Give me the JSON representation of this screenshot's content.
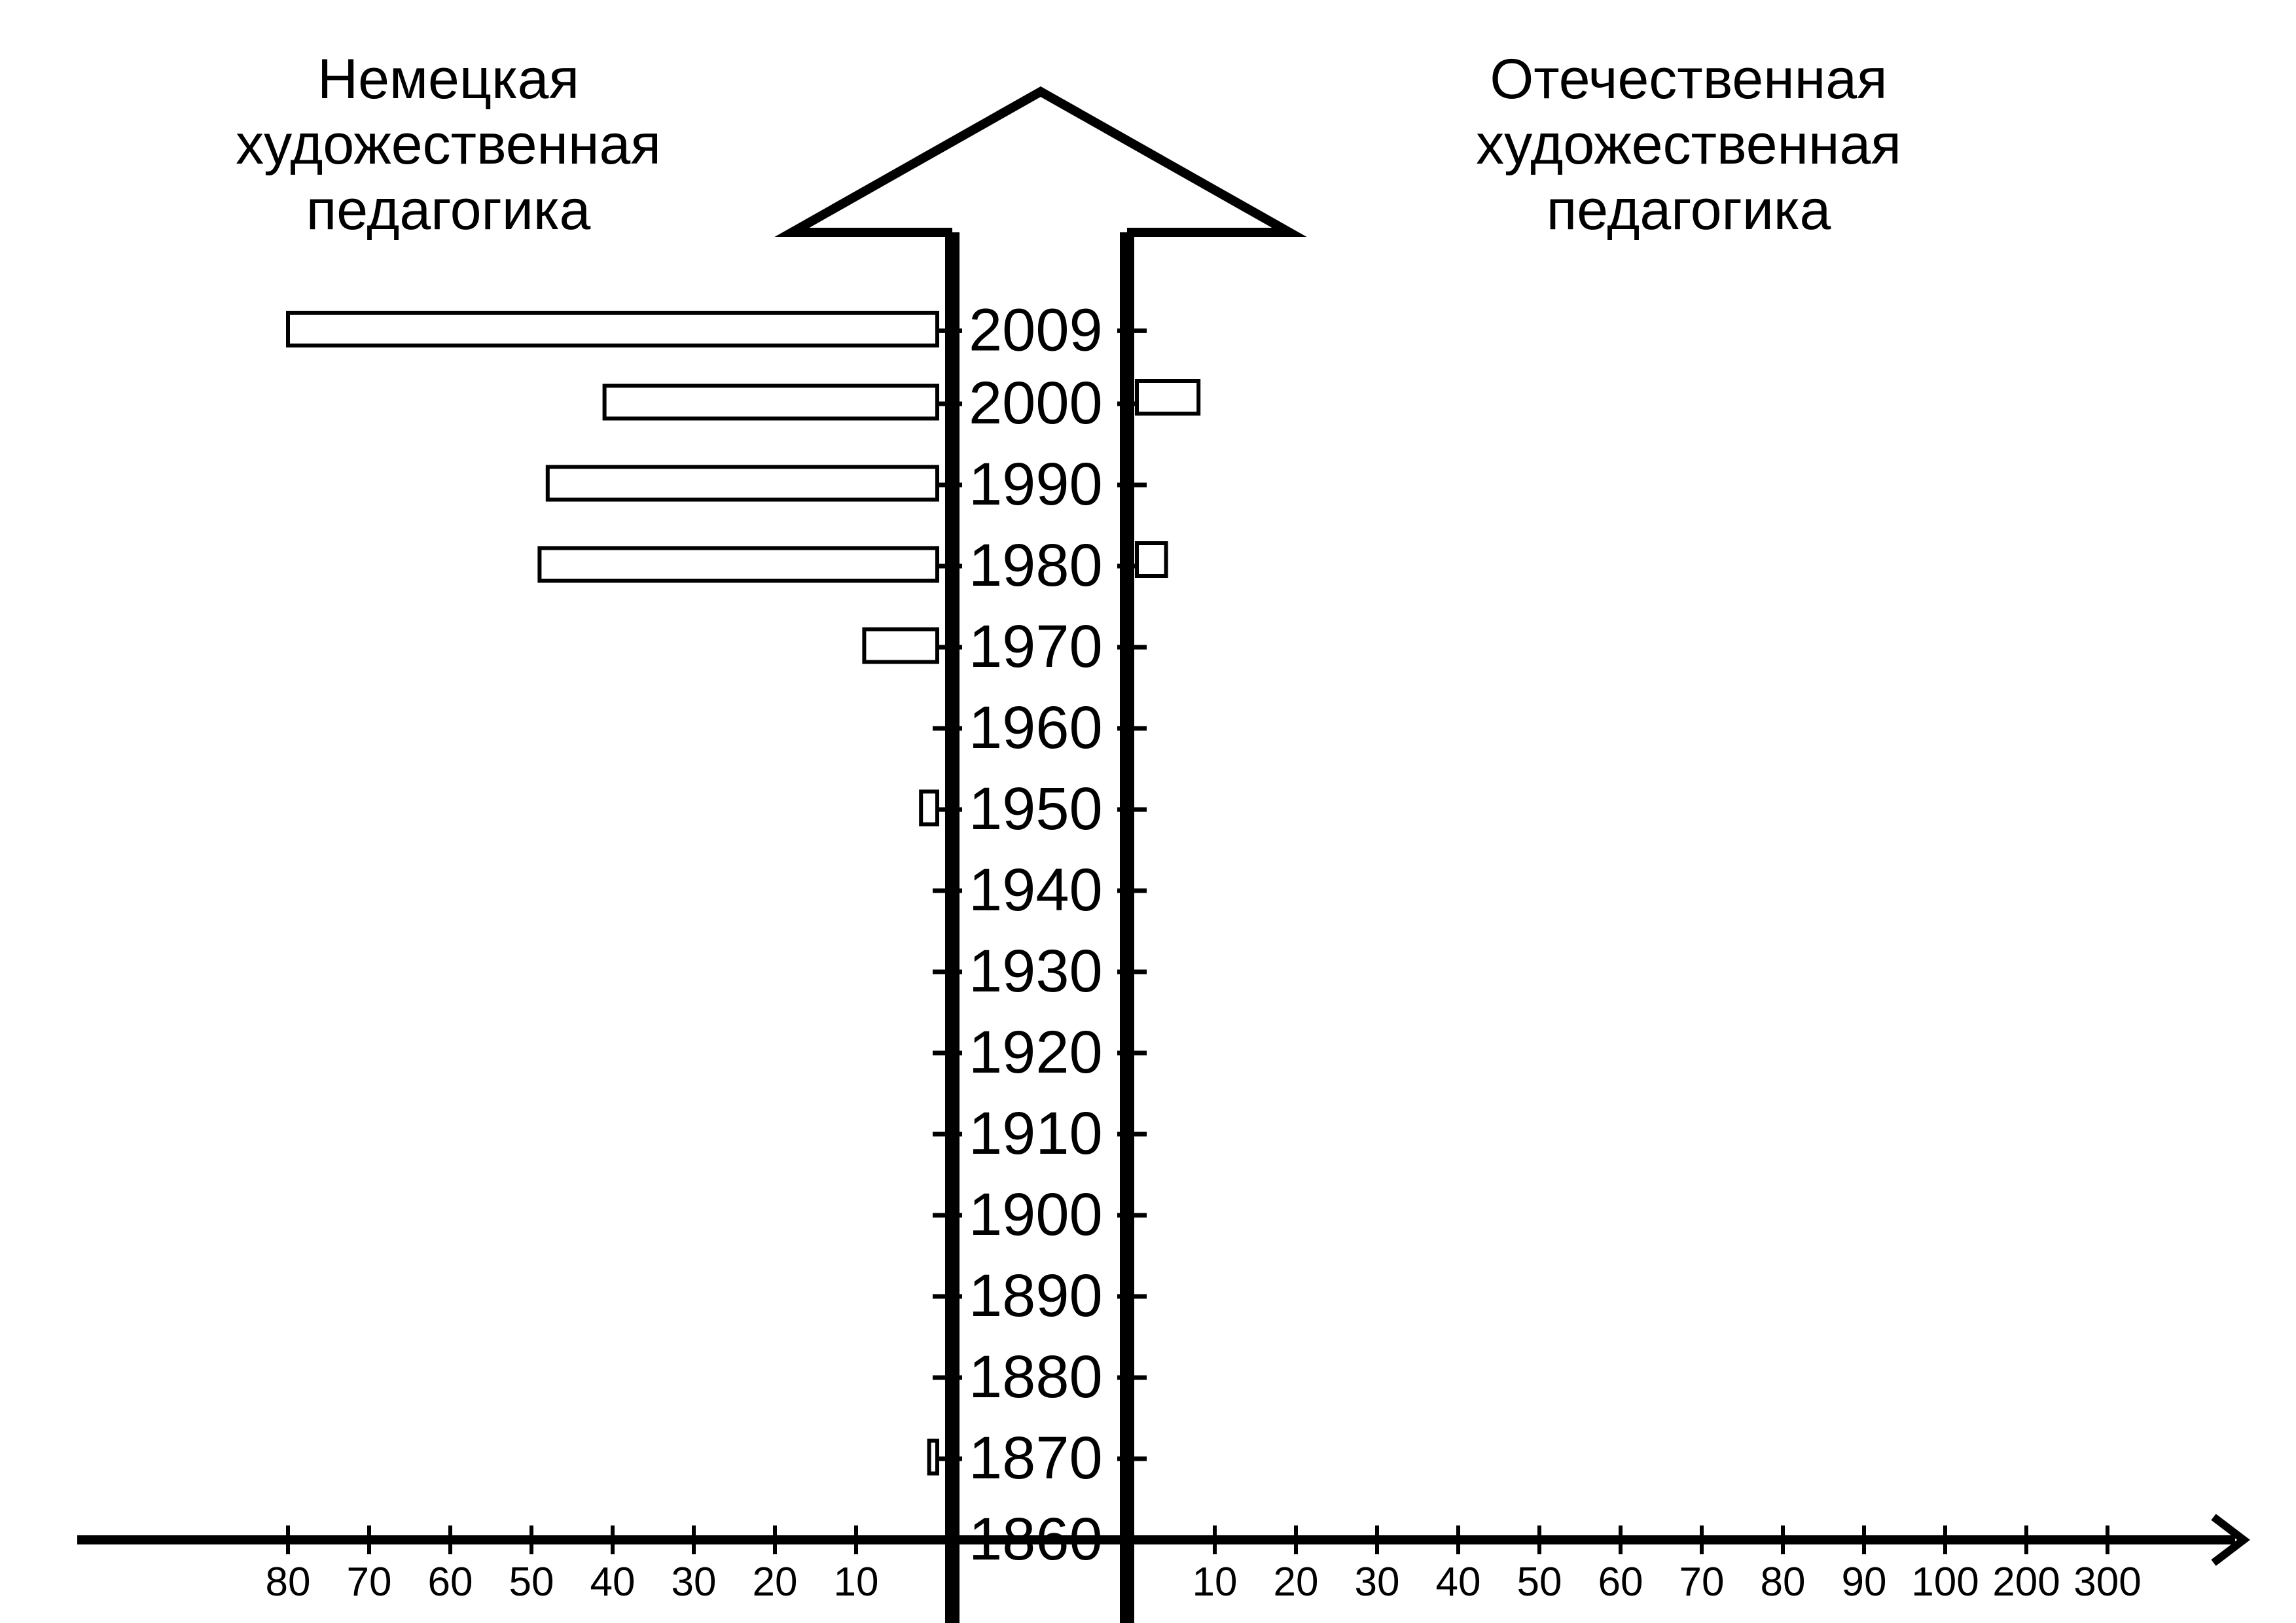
{
  "chart_data": {
    "type": "bar",
    "orientation": "horizontal",
    "left_title": [
      "Немецкая",
      "художественная",
      "педагогика"
    ],
    "right_title": [
      "Отечественная",
      "художественная",
      "педагогика"
    ],
    "y_ticks": [
      "2009",
      "2000",
      "1990",
      "1980",
      "1970",
      "1960",
      "1950",
      "1940",
      "1930",
      "1920",
      "1910",
      "1900",
      "1890",
      "1880",
      "1870",
      "1860"
    ],
    "left_x_ticks": [
      "80",
      "70",
      "60",
      "50",
      "40",
      "30",
      "20",
      "10"
    ],
    "right_x_ticks": [
      "10",
      "20",
      "30",
      "40",
      "50",
      "60",
      "70",
      "80",
      "90",
      "100",
      "200",
      "300"
    ],
    "series": [
      {
        "side": "left",
        "values": [
          {
            "year": 2009,
            "value": 80
          },
          {
            "year": 2000,
            "value": 41
          },
          {
            "year": 1990,
            "value": 48
          },
          {
            "year": 1980,
            "value": 49
          },
          {
            "year": 1970,
            "value": 9
          },
          {
            "year": 1950,
            "value": 2
          },
          {
            "year": 1870,
            "value": 1
          }
        ]
      },
      {
        "side": "right",
        "values": [
          {
            "year": 2000,
            "value": 8
          },
          {
            "year": 1980,
            "value": 4
          }
        ]
      }
    ]
  }
}
